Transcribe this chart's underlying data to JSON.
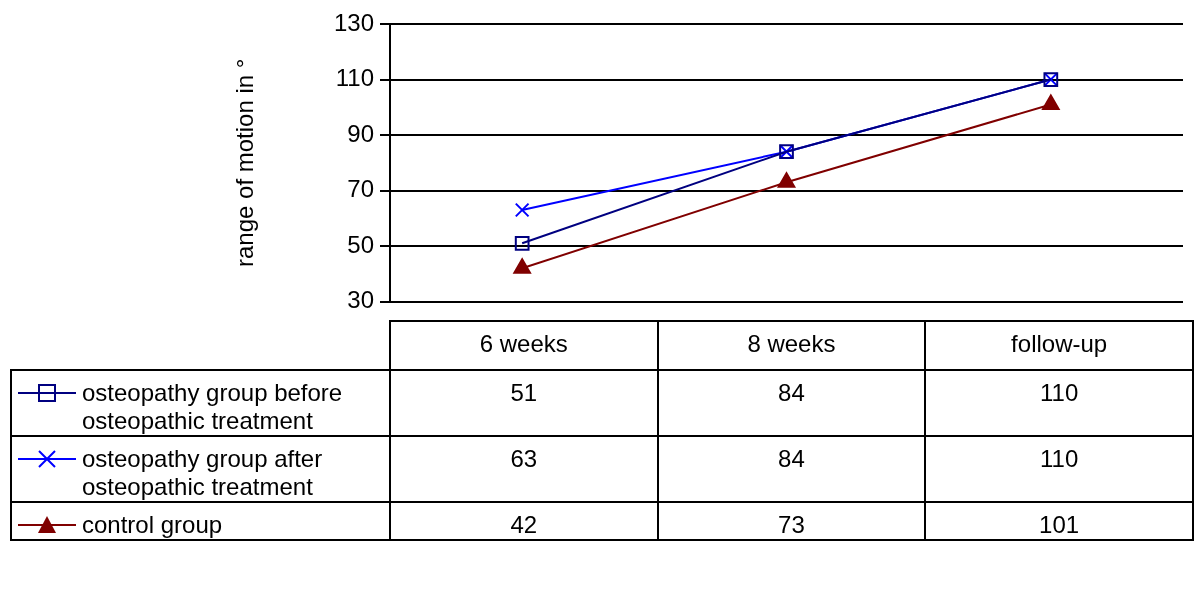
{
  "chart_data": {
    "type": "line",
    "ylabel": "range of motion in °",
    "categories": [
      "6 weeks",
      "8 weeks",
      "follow-up"
    ],
    "series": [
      {
        "name": "osteopathy group before osteopathic treatment",
        "color": "#000080",
        "marker": "square",
        "values": [
          51,
          84,
          110
        ]
      },
      {
        "name": "osteopathy group after osteopathic treatment",
        "color": "#0000ff",
        "marker": "cross",
        "values": [
          63,
          84,
          110
        ]
      },
      {
        "name": "control group",
        "color": "#800000",
        "marker": "triangle",
        "values": [
          42,
          73,
          101
        ]
      }
    ],
    "ylim": [
      30,
      130
    ],
    "yticks": [
      30,
      50,
      70,
      90,
      110,
      130
    ],
    "grid": "y",
    "legend": "bottom left",
    "data_labels": true
  }
}
